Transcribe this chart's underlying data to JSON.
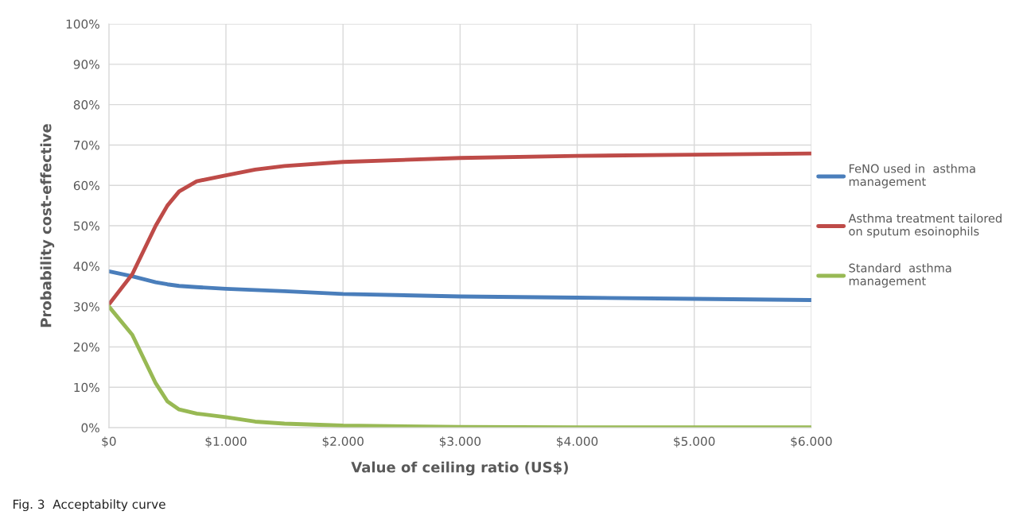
{
  "chart_data": {
    "type": "line",
    "xlabel": "Value of ceiling ratio (US$)",
    "ylabel": "Probability cost-effective",
    "annotations": [
      "Fig. 3  Acceptabilty curve"
    ],
    "xlim": [
      0,
      6000
    ],
    "ylim": [
      0,
      100
    ],
    "xticks": [
      {
        "value": 0,
        "label": "$0"
      },
      {
        "value": 1000,
        "label": "$1.000"
      },
      {
        "value": 2000,
        "label": "$2.000"
      },
      {
        "value": 3000,
        "label": "$3.000"
      },
      {
        "value": 4000,
        "label": "$4.000"
      },
      {
        "value": 5000,
        "label": "$5.000"
      },
      {
        "value": 6000,
        "label": "$6.000"
      }
    ],
    "yticks": [
      {
        "value": 0,
        "label": "0%"
      },
      {
        "value": 10,
        "label": "10%"
      },
      {
        "value": 20,
        "label": "20%"
      },
      {
        "value": 30,
        "label": "30%"
      },
      {
        "value": 40,
        "label": "40%"
      },
      {
        "value": 50,
        "label": "50%"
      },
      {
        "value": 60,
        "label": "60%"
      },
      {
        "value": 70,
        "label": "70%"
      },
      {
        "value": 80,
        "label": "80%"
      },
      {
        "value": 90,
        "label": "90%"
      },
      {
        "value": 100,
        "label": "100%"
      }
    ],
    "grid": true,
    "legend": "right",
    "marker": "none",
    "line_style": "solid",
    "x": [
      0,
      200,
      400,
      500,
      600,
      750,
      1000,
      1250,
      1500,
      2000,
      3000,
      4000,
      5000,
      6000
    ],
    "series": [
      {
        "name": "FeNO used in  asthma management",
        "color": "#4a7ebb",
        "values": [
          38.7,
          37.5,
          36.0,
          35.5,
          35.1,
          34.8,
          34.4,
          34.1,
          33.8,
          33.1,
          32.5,
          32.2,
          31.9,
          31.6
        ]
      },
      {
        "name": "Asthma treatment tailored on sputum esoinophils",
        "color": "#be4b48",
        "values": [
          30.5,
          38.0,
          50.0,
          55.0,
          58.5,
          61.0,
          62.5,
          63.9,
          64.8,
          65.8,
          66.8,
          67.3,
          67.6,
          67.9
        ]
      },
      {
        "name": "Standard  asthma management",
        "color": "#98b954",
        "values": [
          30.0,
          23.0,
          11.0,
          6.5,
          4.5,
          3.5,
          2.6,
          1.5,
          1.0,
          0.5,
          0.2,
          0.1,
          0.1,
          0.1
        ]
      }
    ]
  }
}
